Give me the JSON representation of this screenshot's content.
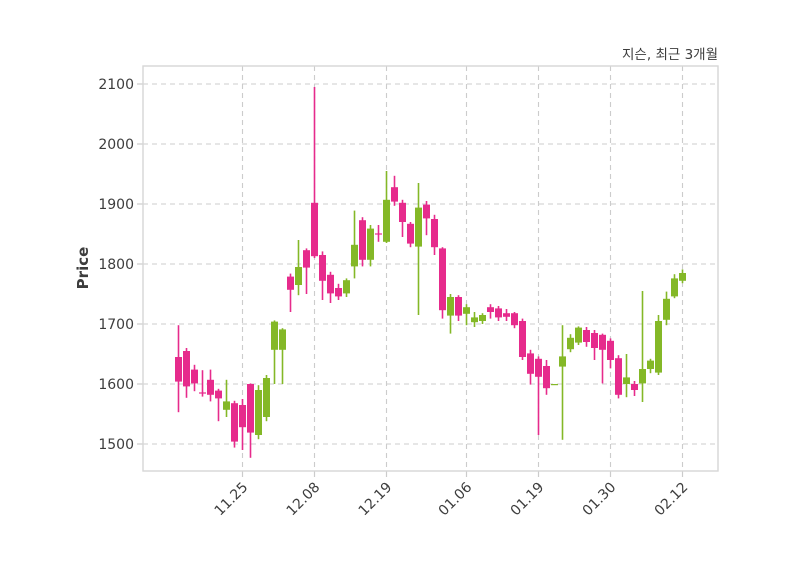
{
  "header": {
    "title": "지슨, 최근 3개월"
  },
  "chart_data": {
    "type": "candlestick",
    "title": "지슨, 최근 3개월",
    "xlabel": "",
    "ylabel": "Price",
    "ylim": [
      1455,
      2130
    ],
    "yticks": [
      1500,
      1600,
      1700,
      1800,
      1900,
      2000,
      2100
    ],
    "xtick_labels": [
      "11.25",
      "12.08",
      "12.19",
      "01.06",
      "01.19",
      "01.30",
      "02.12"
    ],
    "xtick_indices": [
      8,
      17,
      26,
      36,
      45,
      54,
      63
    ],
    "grid": true,
    "legend": "none",
    "up_color": "#84b827",
    "down_color": "#e62b8c",
    "grid_color": "#cccccc",
    "border_color": "#d6d6d6",
    "text_color": "#3d3d3d",
    "candles_format": [
      "open",
      "high",
      "low",
      "close"
    ],
    "candles": [
      [
        1645,
        1698,
        1553,
        1604
      ],
      [
        1655,
        1660,
        1577,
        1596
      ],
      [
        1624,
        1632,
        1588,
        1601
      ],
      [
        1586,
        1623,
        1579,
        1584
      ],
      [
        1607,
        1624,
        1571,
        1582
      ],
      [
        1589,
        1592,
        1538,
        1576
      ],
      [
        1557,
        1607,
        1545,
        1571
      ],
      [
        1568,
        1572,
        1494,
        1504
      ],
      [
        1565,
        1575,
        1490,
        1528
      ],
      [
        1600,
        1601,
        1477,
        1519
      ],
      [
        1515,
        1598,
        1508,
        1590
      ],
      [
        1545,
        1615,
        1538,
        1610
      ],
      [
        1657,
        1706,
        1600,
        1704
      ],
      [
        1657,
        1693,
        1600,
        1691
      ],
      [
        1779,
        1784,
        1720,
        1757
      ],
      [
        1765,
        1840,
        1748,
        1795
      ],
      [
        1823,
        1826,
        1750,
        1794
      ],
      [
        1902,
        2095,
        1810,
        1813
      ],
      [
        1815,
        1821,
        1740,
        1772
      ],
      [
        1782,
        1787,
        1735,
        1751
      ],
      [
        1760,
        1767,
        1740,
        1746
      ],
      [
        1751,
        1776,
        1745,
        1773
      ],
      [
        1796,
        1889,
        1776,
        1832
      ],
      [
        1873,
        1878,
        1796,
        1807
      ],
      [
        1807,
        1865,
        1796,
        1859
      ],
      [
        1851,
        1865,
        1837,
        1849
      ],
      [
        1837,
        1955,
        1835,
        1907
      ],
      [
        1928,
        1947,
        1897,
        1904
      ],
      [
        1902,
        1907,
        1845,
        1870
      ],
      [
        1867,
        1870,
        1828,
        1834
      ],
      [
        1829,
        1935,
        1715,
        1894
      ],
      [
        1899,
        1905,
        1848,
        1876
      ],
      [
        1875,
        1882,
        1815,
        1828
      ],
      [
        1826,
        1828,
        1709,
        1723
      ],
      [
        1714,
        1750,
        1684,
        1745
      ],
      [
        1745,
        1748,
        1705,
        1714
      ],
      [
        1717,
        1733,
        1698,
        1728
      ],
      [
        1703,
        1720,
        1695,
        1711
      ],
      [
        1705,
        1718,
        1700,
        1715
      ],
      [
        1728,
        1733,
        1709,
        1720
      ],
      [
        1726,
        1730,
        1705,
        1711
      ],
      [
        1718,
        1725,
        1705,
        1712
      ],
      [
        1718,
        1720,
        1693,
        1698
      ],
      [
        1705,
        1709,
        1640,
        1645
      ],
      [
        1651,
        1657,
        1599,
        1617
      ],
      [
        1642,
        1646,
        1515,
        1612
      ],
      [
        1630,
        1640,
        1582,
        1593
      ],
      [
        1600,
        1600,
        1600,
        1600
      ],
      [
        1629,
        1698,
        1507,
        1646
      ],
      [
        1658,
        1683,
        1653,
        1677
      ],
      [
        1669,
        1696,
        1665,
        1694
      ],
      [
        1690,
        1695,
        1662,
        1670
      ],
      [
        1685,
        1690,
        1640,
        1660
      ],
      [
        1682,
        1684,
        1601,
        1657
      ],
      [
        1672,
        1676,
        1626,
        1640
      ],
      [
        1643,
        1648,
        1576,
        1582
      ],
      [
        1600,
        1650,
        1578,
        1611
      ],
      [
        1600,
        1605,
        1580,
        1590
      ],
      [
        1601,
        1755,
        1570,
        1625
      ],
      [
        1625,
        1642,
        1618,
        1639
      ],
      [
        1619,
        1715,
        1615,
        1705
      ],
      [
        1707,
        1754,
        1698,
        1742
      ],
      [
        1746,
        1783,
        1743,
        1776
      ],
      [
        1772,
        1791,
        1768,
        1785
      ]
    ]
  }
}
